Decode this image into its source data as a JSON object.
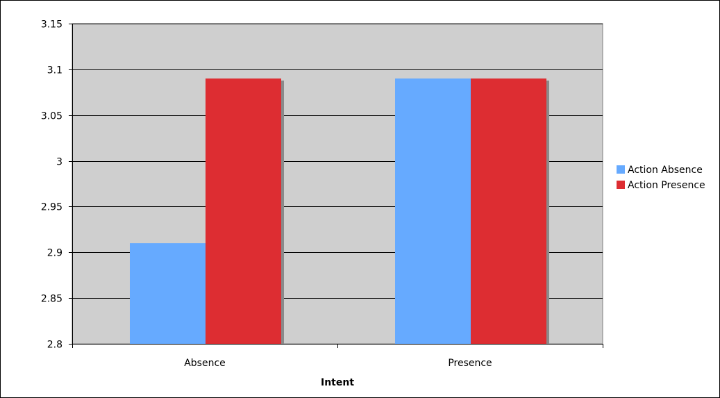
{
  "chart_data": {
    "type": "bar",
    "title": "",
    "xlabel": "Intent",
    "ylabel": "",
    "categories": [
      "Absence",
      "Presence"
    ],
    "series": [
      {
        "name": "Action Absence",
        "values": [
          2.91,
          3.09
        ]
      },
      {
        "name": "Action Presence",
        "values": [
          3.09,
          3.09
        ]
      }
    ],
    "ylim": [
      2.8,
      3.15
    ],
    "yticks": [
      "2.8",
      "2.85",
      "2.9",
      "2.95",
      "3",
      "3.05",
      "3.1",
      "3.15"
    ],
    "grid": true,
    "legend_position": "right",
    "colors": {
      "Action Absence": "#66aaff",
      "Action Presence": "#dd2d32",
      "plot_background": "#cfcfcf",
      "bar_shadow": "#8a8a8a"
    }
  }
}
